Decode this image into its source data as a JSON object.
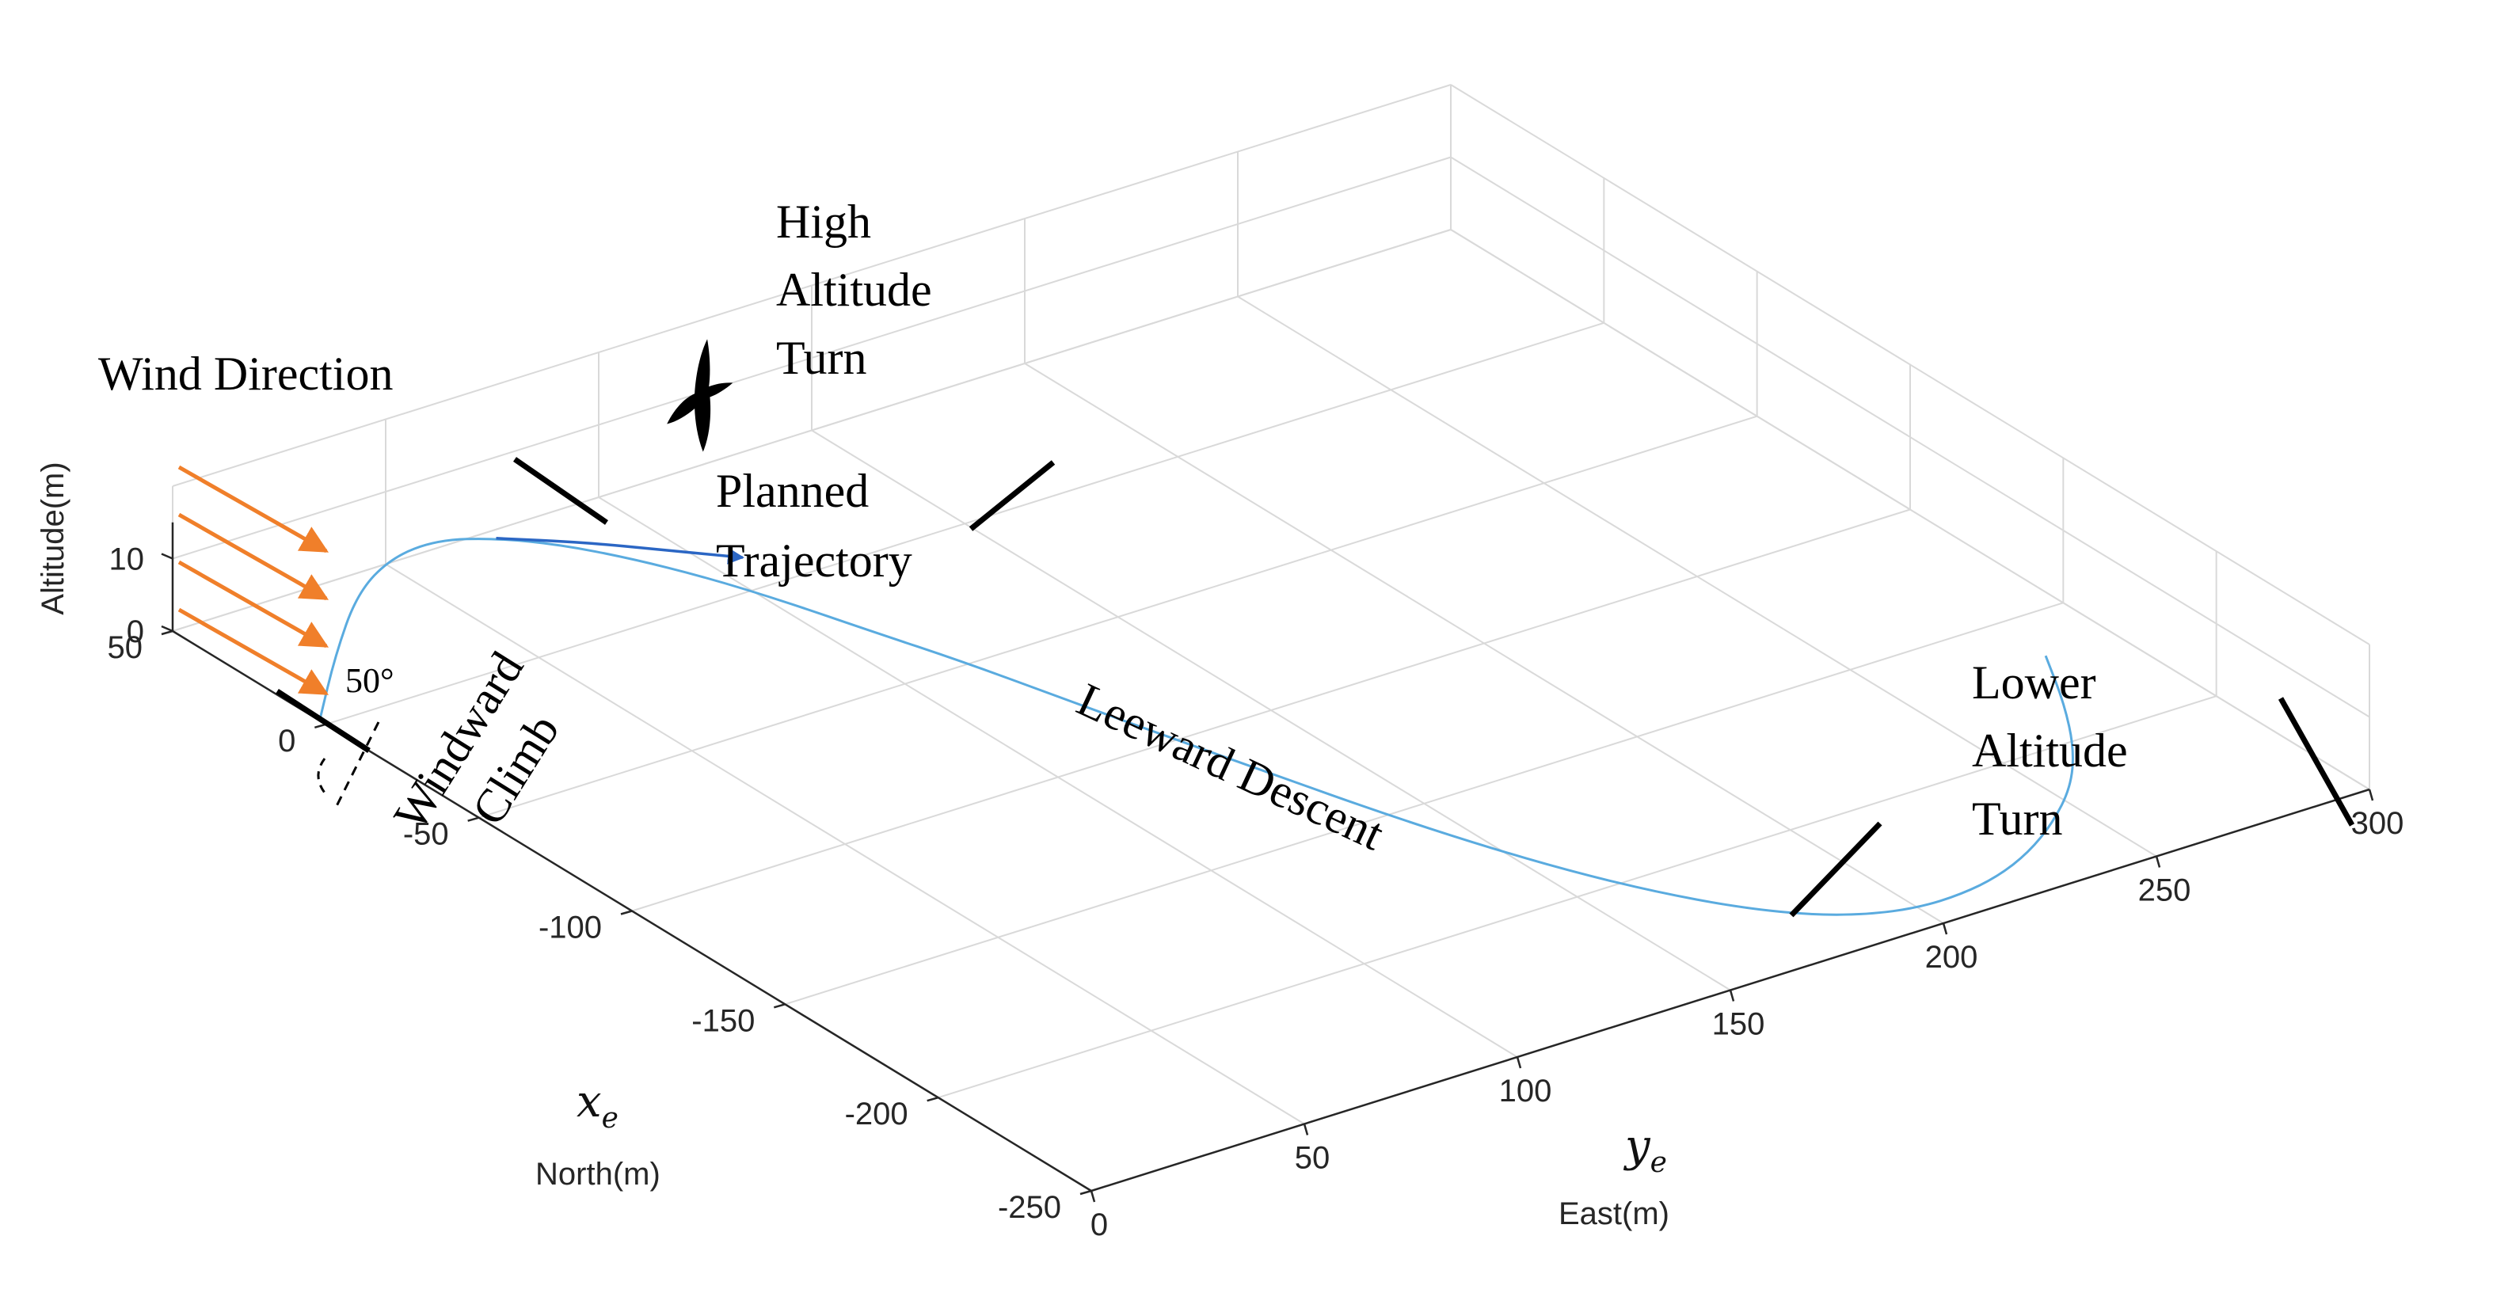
{
  "chart_data": {
    "type": "line",
    "title": "",
    "xlabel_symbol": "x",
    "xlabel_subscript": "e",
    "xlabel": "North(m)",
    "ylabel_symbol": "y",
    "ylabel_subscript": "e",
    "ylabel": "East(m)",
    "zlabel": "Altitude(m)",
    "north_ticks": [
      "50",
      "0",
      "-50",
      "-100",
      "-150",
      "-200",
      "-250"
    ],
    "east_ticks": [
      "0",
      "50",
      "100",
      "150",
      "200",
      "250",
      "300"
    ],
    "altitude_ticks": [
      "0",
      "10"
    ],
    "xlim_north": [
      -250,
      50
    ],
    "ylim_east": [
      0,
      300
    ],
    "zlim_altitude": [
      0,
      20
    ],
    "grid": true,
    "series": [
      {
        "color": "#5aabdf",
        "points": [
          {
            "north": 2,
            "east": 0,
            "alt": 0
          },
          {
            "north": 8,
            "east": 8,
            "alt": 6
          },
          {
            "north": 12,
            "east": 16,
            "alt": 12
          },
          {
            "north": 12,
            "east": 24,
            "alt": 15.5
          },
          {
            "north": 8,
            "east": 32,
            "alt": 17.5
          },
          {
            "north": 0,
            "east": 40,
            "alt": 18.3
          },
          {
            "north": -10,
            "east": 48,
            "alt": 18.5
          },
          {
            "north": -22,
            "east": 56,
            "alt": 18.2
          },
          {
            "north": -35,
            "east": 64,
            "alt": 17.5
          },
          {
            "north": -50,
            "east": 72,
            "alt": 16.5
          },
          {
            "north": -66,
            "east": 80,
            "alt": 15.2
          },
          {
            "north": -84,
            "east": 90,
            "alt": 13.5
          },
          {
            "north": -104,
            "east": 100,
            "alt": 11.5
          },
          {
            "north": -124,
            "east": 110,
            "alt": 9.6
          },
          {
            "north": -144,
            "east": 120,
            "alt": 7.8
          },
          {
            "north": -164,
            "east": 130,
            "alt": 6.0
          },
          {
            "north": -182,
            "east": 140,
            "alt": 4.4
          },
          {
            "north": -198,
            "east": 150,
            "alt": 3.0
          },
          {
            "north": -212,
            "east": 160,
            "alt": 1.9
          },
          {
            "north": -224,
            "east": 170,
            "alt": 1.1
          },
          {
            "north": -233,
            "east": 180,
            "alt": 0.5
          },
          {
            "north": -239,
            "east": 190,
            "alt": 0.2
          },
          {
            "north": -242,
            "east": 200,
            "alt": 0.1
          },
          {
            "north": -242,
            "east": 210,
            "alt": 0.1
          },
          {
            "north": -240,
            "east": 220,
            "alt": 0.2
          },
          {
            "north": -236,
            "east": 230,
            "alt": 0.6
          },
          {
            "north": -230,
            "east": 240,
            "alt": 1.3
          },
          {
            "north": -222,
            "east": 250,
            "alt": 2.3
          },
          {
            "north": -212,
            "east": 258,
            "alt": 3.5
          },
          {
            "north": -199,
            "east": 265,
            "alt": 5.2
          },
          {
            "north": -186,
            "east": 270,
            "alt": 7.5
          }
        ]
      },
      {
        "color": "#2b66c4",
        "points": [
          {
            "north": 0,
            "east": 40,
            "alt": 18.3
          },
          {
            "north": -12,
            "east": 52,
            "alt": 18.6
          },
          {
            "north": -24,
            "east": 62,
            "alt": 18.8
          },
          {
            "north": -36,
            "east": 72,
            "alt": 19.0
          }
        ]
      }
    ],
    "annotations": {
      "wind_direction": "Wind Direction",
      "high_altitude_turn": [
        "High",
        "Altitude",
        "Turn"
      ],
      "planned_trajectory": [
        "Planned",
        "Trajectory"
      ],
      "windward_climb": [
        "Windward",
        "Climb"
      ],
      "leeward_descent": "Leeward Descent",
      "lower_altitude_turn": [
        "Lower",
        "Altitude",
        "Turn"
      ],
      "angle": "50°"
    },
    "wind_arrow_color": "#f07f2a",
    "wind_arrow_count": 4
  }
}
